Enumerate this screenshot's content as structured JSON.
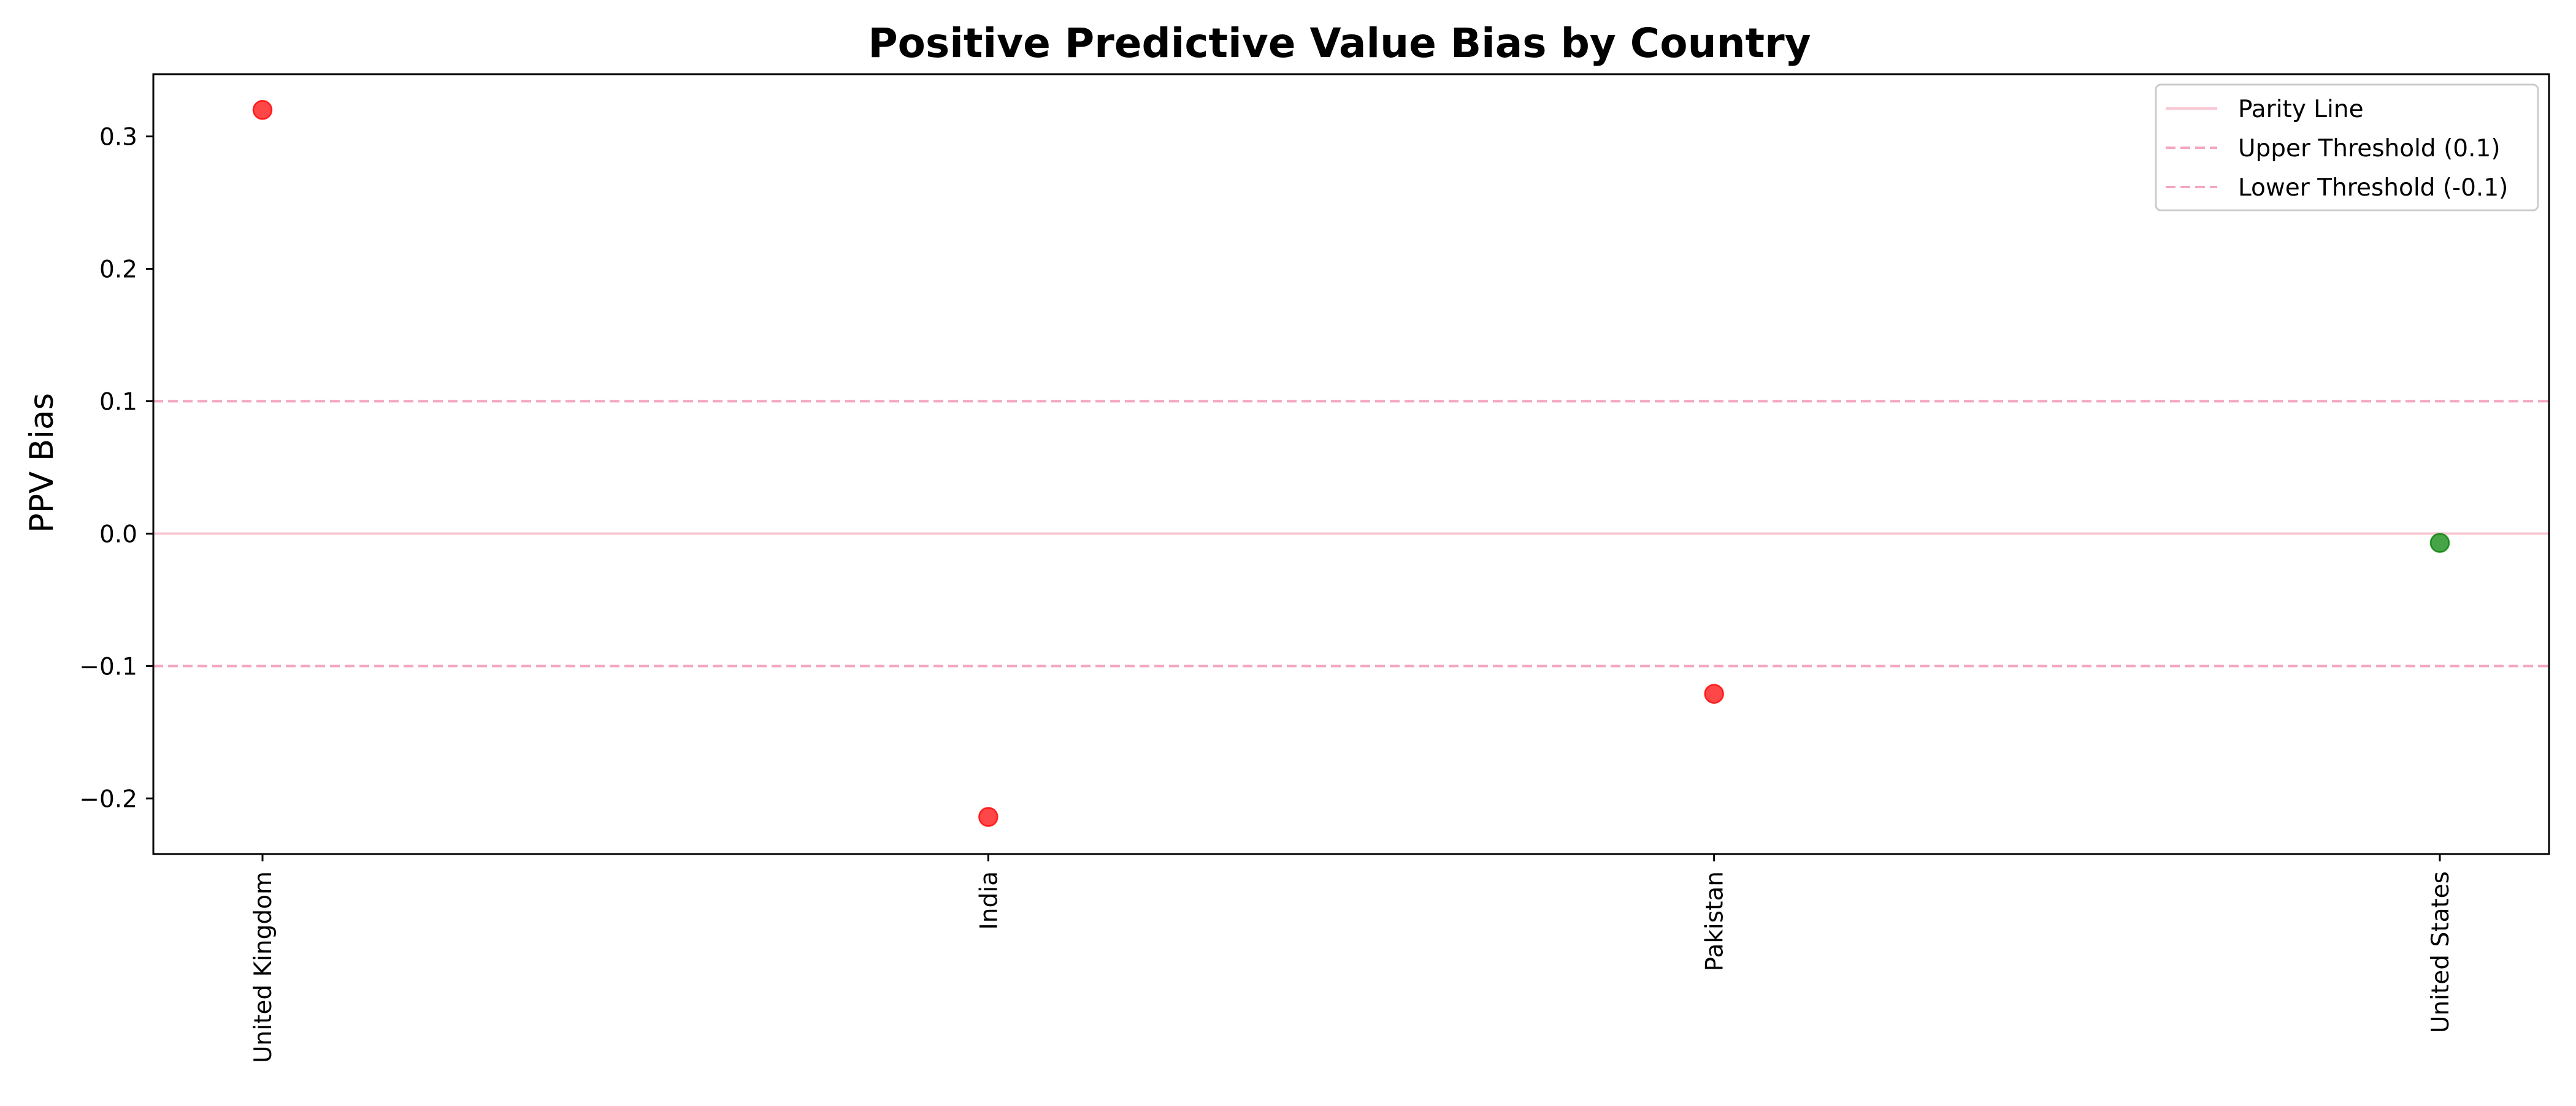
{
  "chart_data": {
    "type": "scatter",
    "title": "Positive Predictive Value Bias by Country",
    "xlabel": "",
    "ylabel": "PPV Bias",
    "categories": [
      "United Kingdom",
      "India",
      "Pakistan",
      "United States"
    ],
    "values": [
      0.32,
      -0.214,
      -0.121,
      -0.007
    ],
    "point_colors": [
      "#ff0000",
      "#ff0000",
      "#ff0000",
      "#008000"
    ],
    "ylim": [
      -0.242,
      0.347
    ],
    "yticks": [
      0.3,
      0.2,
      0.1,
      0.0,
      -0.1,
      -0.2
    ],
    "ytick_labels": [
      "0.3",
      "0.2",
      "0.1",
      "0.0",
      "−0.1",
      "−0.2"
    ],
    "grid": false,
    "legend_position": "top-right",
    "reference_lines": [
      {
        "label": "Parity Line",
        "y": 0.0,
        "style": "solid",
        "color": "#f8c8d4"
      },
      {
        "label": "Upper Threshold (0.1)",
        "y": 0.1,
        "style": "dashed",
        "color": "#f4a6be"
      },
      {
        "label": "Lower Threshold (-0.1)",
        "y": -0.1,
        "style": "dashed",
        "color": "#f4a6be"
      }
    ]
  }
}
